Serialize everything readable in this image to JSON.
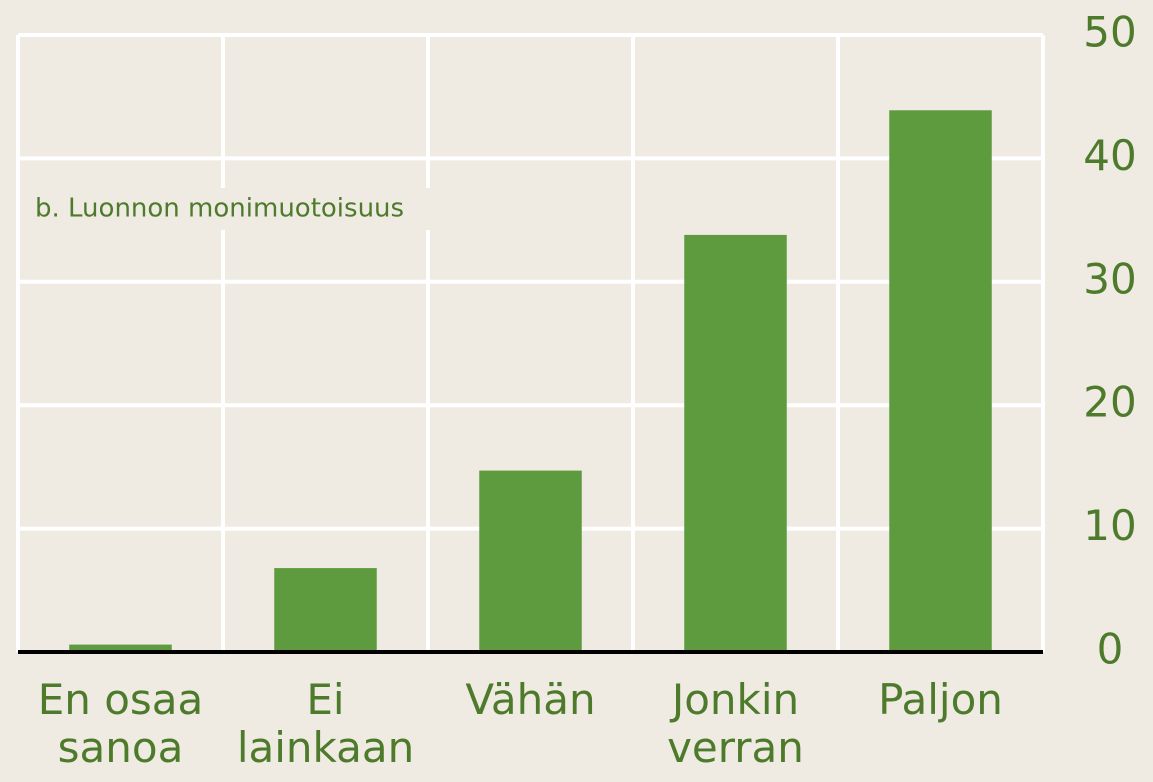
{
  "chart_data": {
    "type": "bar",
    "title": "b. Luonnon monimuotoisuus",
    "categories": [
      "En osaa sanoa",
      "Ei lainkaan",
      "Vähän",
      "Jonkin verran",
      "Paljon"
    ],
    "values": [
      0.6,
      6.8,
      14.7,
      33.8,
      43.9
    ],
    "color": "#5e9a3e",
    "ylim": [
      0,
      50
    ],
    "yticks": [
      0,
      10,
      20,
      30,
      40,
      50
    ],
    "grid": true
  }
}
